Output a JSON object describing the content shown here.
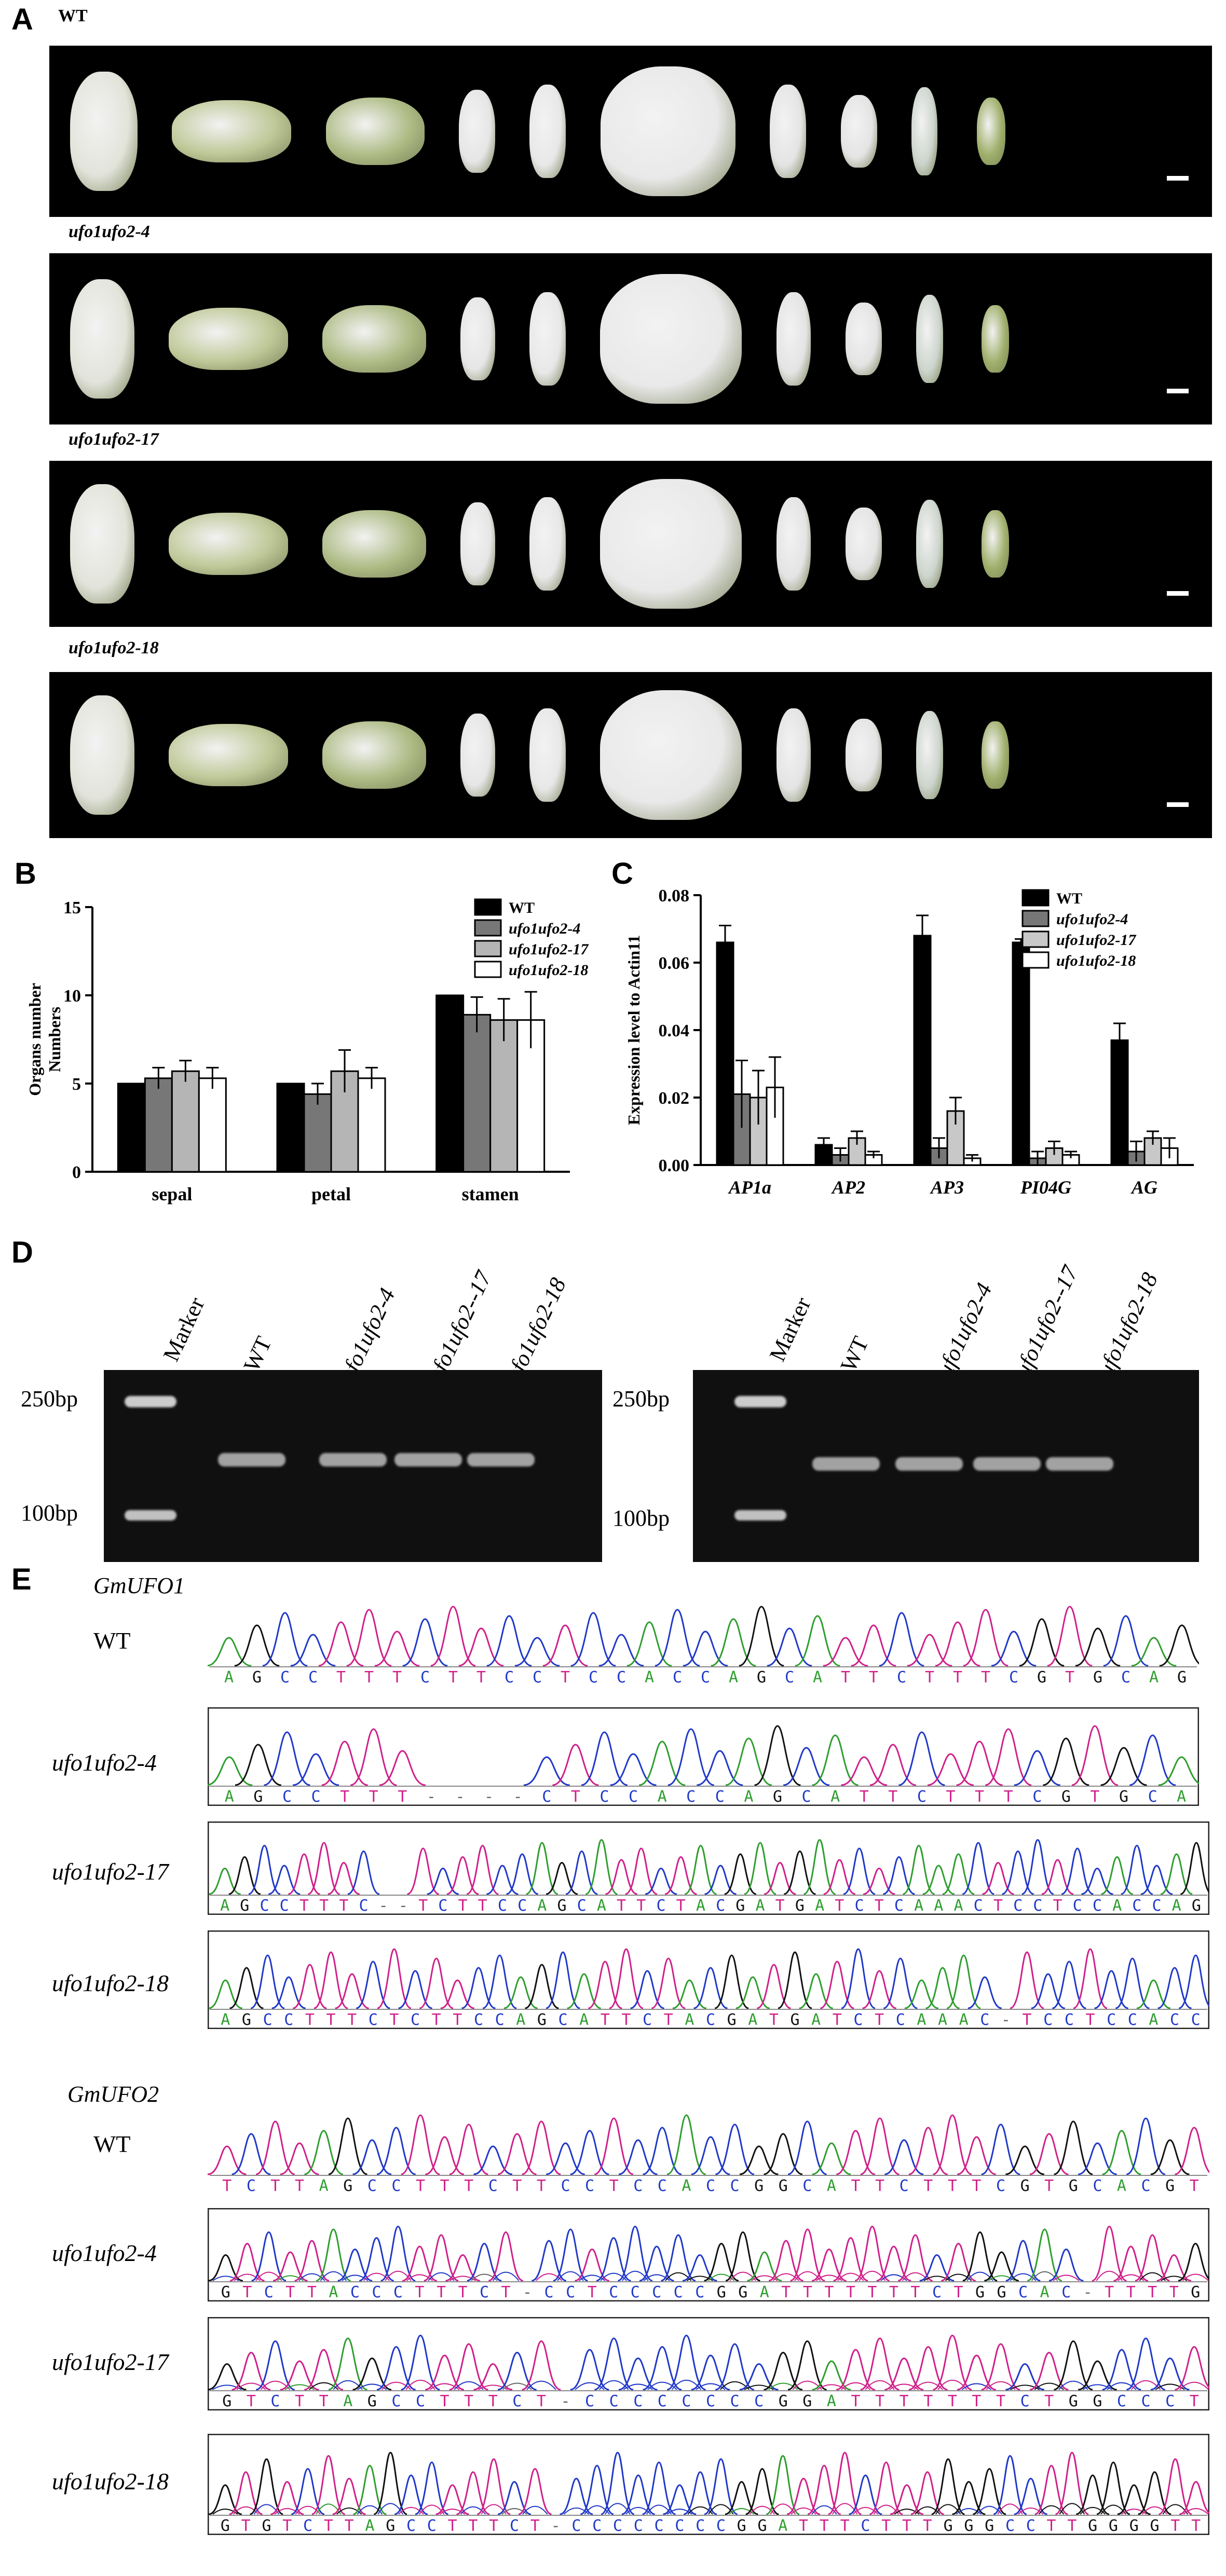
{
  "figure": {
    "panel_a": {
      "letter": "A",
      "rows": [
        {
          "label": "WT"
        },
        {
          "label": "ufo1ufo2-4"
        },
        {
          "label": "ufo1ufo2-17"
        },
        {
          "label": "ufo1ufo2-18"
        }
      ]
    },
    "panel_b": {
      "letter": "B"
    },
    "panel_c": {
      "letter": "C"
    },
    "panel_d": {
      "letter": "D",
      "lanes": [
        "Marker",
        "WT",
        "ufo1ufo2-4",
        "ufo1ufo2--17",
        "ufo1ufo2-18"
      ],
      "bp_labels": [
        "250bp",
        "100bp"
      ]
    },
    "panel_e": {
      "letter": "E",
      "gene1": "GmUFO1",
      "gene2": "GmUFO2",
      "rows": [
        "WT",
        "ufo1ufo2-4",
        "ufo1ufo2-17",
        "ufo1ufo2-18"
      ],
      "ufo1_seqs": [
        "A G C C T T T C T T C C T C C A C C A G C A T T C T T T C G T G C A G",
        "A G C C T T T - - - - C T C C A C C A G C A T T C T T T C G T G C A",
        "A G C C T T T C - - T C T T C C A G C A T T C T A C G A T G A T C T C A A A C T C C T C C A C C A G",
        "A G C C T T T C T C T T C C A G C A T T C T A C G A T G A T C T C A A A C - T C C T C C A C C"
      ],
      "ufo2_seqs": [
        "T C T T A G C C T T T C T T C C T C C A C C G G C A T T C T T T C G T G C A C G T",
        "G T C T T A C C C T T T C T - C C T C C C C C G G A T T T T T T T C T G G C A C - T T T T G",
        "G T C T T A G C C T T T C T - C C C C C C C C G G A T T T T T T T C T G G C C C T",
        "G T G T C T T A G C C T T T C T - C C C C C C C C G G A T T T C T T T G G G C C T T G G G G T T"
      ]
    }
  },
  "chart_data": [
    {
      "type": "bar",
      "title": "",
      "ylabel": "Organs number Numbers",
      "ylabel_lines": [
        "Organs number",
        "Numbers"
      ],
      "xlabel": "",
      "categories": [
        "sepal",
        "petal",
        "stamen"
      ],
      "ylim": [
        0,
        15
      ],
      "yticks": [
        0,
        5,
        10,
        15
      ],
      "legend_position": "top-right",
      "series": [
        {
          "name": "WT",
          "values": [
            5.0,
            5.0,
            10.0
          ],
          "errors": [
            0,
            0,
            0
          ],
          "color": "#000000"
        },
        {
          "name": "ufo1ufo2-4",
          "values": [
            5.3,
            4.4,
            8.9
          ],
          "errors": [
            0.6,
            0.6,
            1.0
          ],
          "color": "#777777"
        },
        {
          "name": "ufo1ufo2-17",
          "values": [
            5.7,
            5.7,
            8.6
          ],
          "errors": [
            0.6,
            1.2,
            1.2
          ],
          "color": "#b5b5b5"
        },
        {
          "name": "ufo1ufo2-18",
          "values": [
            5.3,
            5.3,
            8.6
          ],
          "errors": [
            0.6,
            0.6,
            1.6
          ],
          "color": "#ffffff"
        }
      ]
    },
    {
      "type": "bar",
      "title": "",
      "ylabel": "Expression level to Actin11",
      "xlabel": "",
      "categories": [
        "AP1a",
        "AP2",
        "AP3",
        "PI04G",
        "AG"
      ],
      "ylim": [
        0,
        0.08
      ],
      "yticks": [
        "0.00",
        "0.02",
        "0.04",
        "0.06",
        "0.08"
      ],
      "legend_position": "top-right",
      "series": [
        {
          "name": "WT",
          "values": [
            0.066,
            0.006,
            0.068,
            0.066,
            0.037
          ],
          "errors": [
            0.005,
            0.002,
            0.006,
            0.001,
            0.005
          ],
          "color": "#000000"
        },
        {
          "name": "ufo1ufo2-4",
          "values": [
            0.021,
            0.003,
            0.005,
            0.002,
            0.004
          ],
          "errors": [
            0.01,
            0.002,
            0.003,
            0.002,
            0.003
          ],
          "color": "#777777"
        },
        {
          "name": "ufo1ufo2-17",
          "values": [
            0.02,
            0.008,
            0.016,
            0.005,
            0.008
          ],
          "errors": [
            0.008,
            0.002,
            0.004,
            0.002,
            0.002
          ],
          "color": "#c8c8c8"
        },
        {
          "name": "ufo1ufo2-18",
          "values": [
            0.023,
            0.003,
            0.002,
            0.003,
            0.005
          ],
          "errors": [
            0.009,
            0.001,
            0.001,
            0.001,
            0.003
          ],
          "color": "#ffffff"
        }
      ]
    }
  ]
}
